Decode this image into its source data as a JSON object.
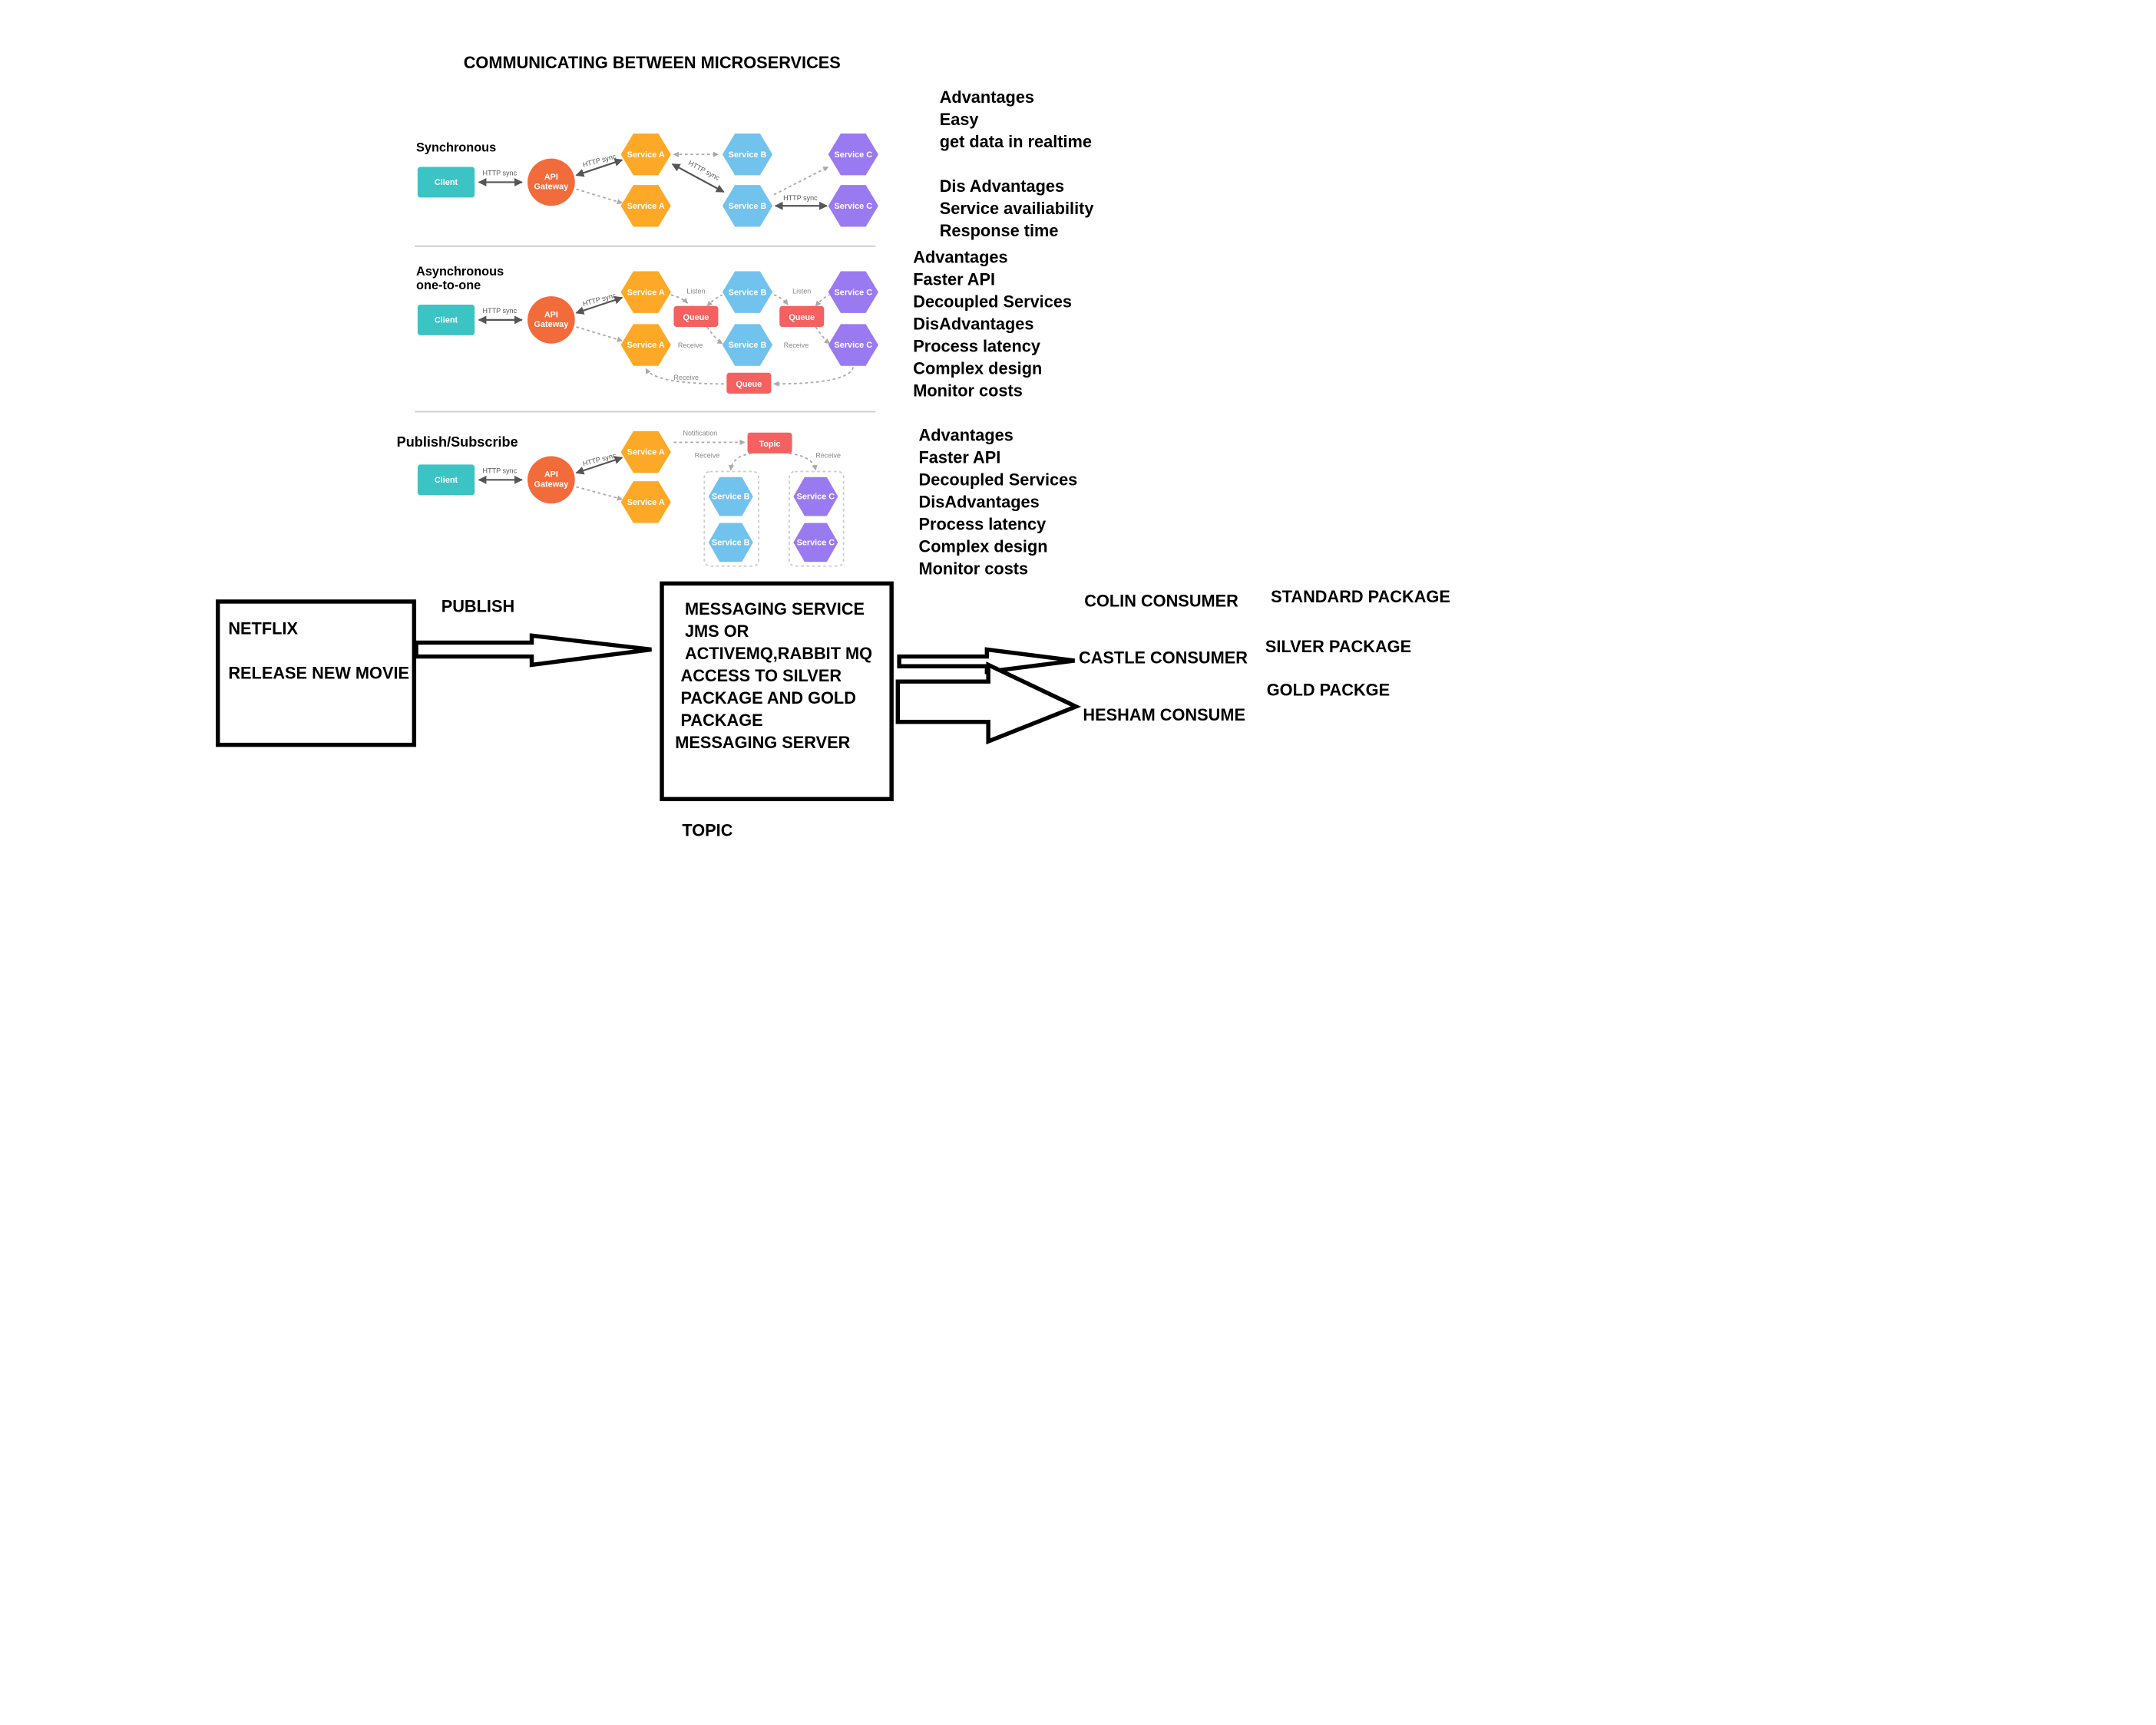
{
  "colors": {
    "client": "#3CC4C4",
    "gateway": "#F26B3A",
    "service_a": "#FDA827",
    "service_b": "#72C2EE",
    "service_c": "#9A7AF0",
    "queue": "#F56060",
    "line": "#000000"
  },
  "diagram_title": "COMMUNICATING BETWEEN MICROSERVICES",
  "sections": {
    "sync": {
      "label": "Synchronous"
    },
    "async": {
      "label_line1": "Asynchronous",
      "label_line2": "one-to-one"
    },
    "pubsub": {
      "label": "Publish/Subscribe"
    }
  },
  "nodes": {
    "client": "Client",
    "api": "API",
    "gateway": "Gateway",
    "service_a": "Service A",
    "service_b": "Service B",
    "service_c": "Service C",
    "queue": "Queue",
    "topic": "Topic"
  },
  "edges": {
    "http_sync": "HTTP sync",
    "listen": "Listen",
    "receive": "Receive",
    "notification": "Notification"
  },
  "notes_sync": {
    "advantages": "Advantages",
    "adv_items": [
      "Easy",
      "get data in realtime"
    ],
    "disadvantages": "Dis Advantages",
    "dis_items": [
      "Service availiability",
      "Response time"
    ]
  },
  "notes_async": {
    "advantages": "Advantages",
    "adv_items": [
      "Faster API",
      "Decoupled Services"
    ],
    "disadvantages": "DisAdvantages",
    "dis_items": [
      "Process latency",
      "Complex design",
      "Monitor costs"
    ]
  },
  "notes_pubsub": {
    "advantages": "Advantages",
    "adv_items": [
      "Faster API",
      "Decoupled Services"
    ],
    "disadvantages": "DisAdvantages",
    "dis_items": [
      "Process latency",
      "Complex design",
      "Monitor costs"
    ]
  },
  "netflix_box": {
    "title": "NETFLIX",
    "subtitle": "RELEASE NEW MOVIE"
  },
  "publish_label": "PUBLISH",
  "messaging_box": {
    "lines": [
      "MESSAGING SERVICE",
      "JMS OR",
      "ACTIVEMQ,RABBIT MQ",
      "ACCESS TO SILVER",
      "PACKAGE AND GOLD",
      "PACKAGE",
      "MESSAGING SERVER"
    ]
  },
  "topic_label": "TOPIC",
  "consumers": [
    "COLIN CONSUMER",
    "CASTLE CONSUMER",
    "HESHAM CONSUME"
  ],
  "packages": [
    "STANDARD PACKAGE",
    "SILVER PACKAGE",
    "GOLD PACKGE"
  ]
}
